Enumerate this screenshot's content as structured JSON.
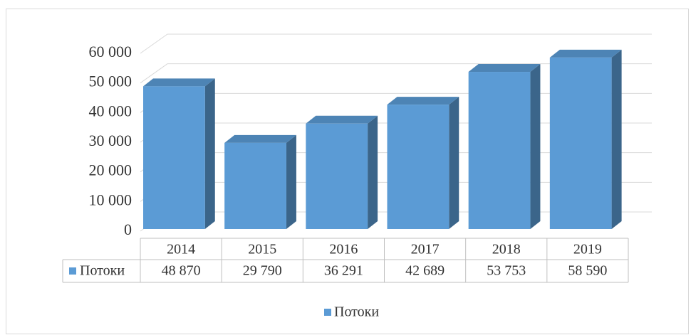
{
  "chart_data": {
    "type": "bar3d",
    "categories": [
      "2014",
      "2015",
      "2016",
      "2017",
      "2018",
      "2019"
    ],
    "series": [
      {
        "name": "Потоки",
        "color": "#5b9bd5",
        "values": [
          48870,
          29790,
          36291,
          42689,
          53753,
          58590
        ],
        "value_labels": [
          "48 870",
          "29 790",
          "36 291",
          "42 689",
          "53 753",
          "58 590"
        ]
      }
    ],
    "ylim": [
      0,
      60000
    ],
    "yticks": [
      0,
      {
        "value": 10000,
        "label": "10 000"
      },
      {
        "value": 20000,
        "label": "20 000"
      },
      {
        "value": 30000,
        "label": "30 000"
      },
      {
        "value": 40000,
        "label": "40 000"
      },
      {
        "value": 50000,
        "label": "50 000"
      },
      {
        "value": 60000,
        "label": "60 000"
      }
    ],
    "grid": true,
    "legend": "bottom",
    "data_table": true
  }
}
